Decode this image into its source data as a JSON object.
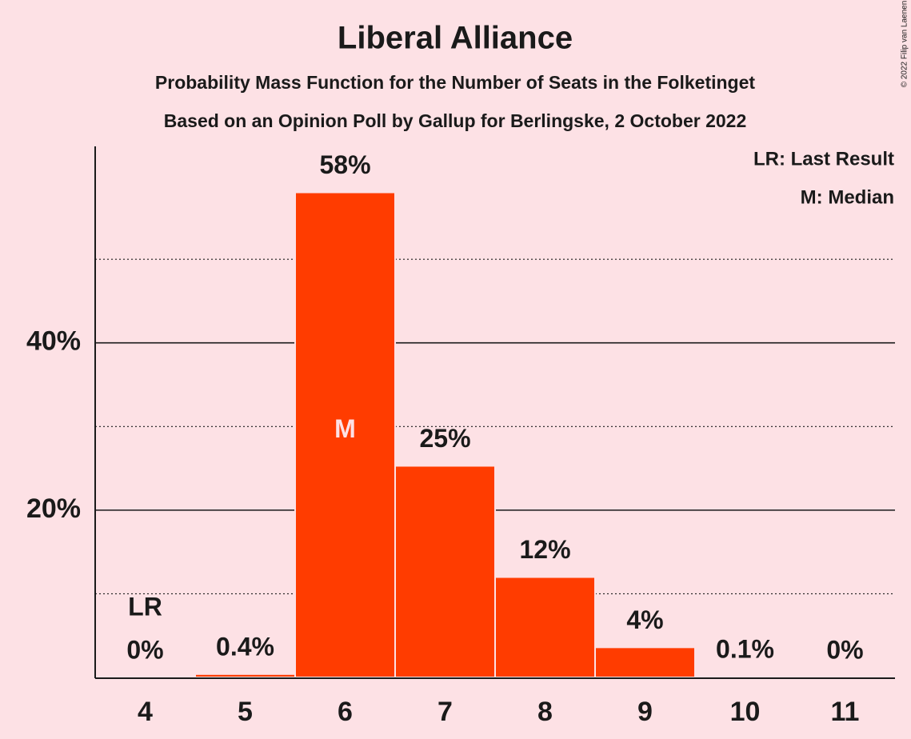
{
  "chart_data": {
    "type": "bar",
    "title": "Liberal Alliance",
    "subtitle": "Probability Mass Function for the Number of Seats in the Folketinget",
    "subtitle2": "Based on an Opinion Poll by Gallup for Berlingske, 2 October 2022",
    "copyright": "© 2022 Filip van Laenen",
    "legend": [
      "LR: Last Result",
      "M: Median"
    ],
    "categories": [
      "4",
      "5",
      "6",
      "7",
      "8",
      "9",
      "10",
      "11"
    ],
    "values": [
      0,
      0.4,
      58,
      25.3,
      12,
      3.6,
      0.1,
      0
    ],
    "value_labels": [
      "0%",
      "0.4%",
      "58%",
      "25%",
      "12%",
      "4%",
      "0.1%",
      "0%"
    ],
    "markers": [
      {
        "category": "4",
        "label": "LR"
      },
      {
        "category": "6",
        "label": "M"
      }
    ],
    "color": "#ff3c00",
    "ylim": [
      0,
      63.5
    ],
    "yticks": [
      {
        "value": 20,
        "label": "20%"
      },
      {
        "value": 40,
        "label": "40%"
      }
    ],
    "minor_yticks": [
      10,
      30,
      50
    ],
    "grid": true
  }
}
